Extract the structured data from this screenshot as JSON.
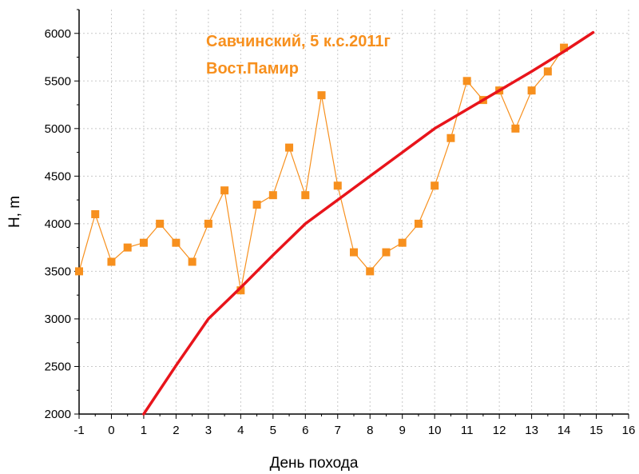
{
  "chart_data": {
    "type": "line",
    "xlabel": "День похода",
    "ylabel": "H, m",
    "xlim": [
      -1,
      16
    ],
    "ylim": [
      2000,
      6250
    ],
    "x_ticks": [
      -1,
      0,
      1,
      2,
      3,
      4,
      5,
      6,
      7,
      8,
      9,
      10,
      11,
      12,
      13,
      14,
      15,
      16
    ],
    "y_ticks": [
      2000,
      2500,
      3000,
      3500,
      4000,
      4500,
      5000,
      5500,
      6000
    ],
    "grid": true,
    "annotations": [
      {
        "text": "Савчинский, 5 к.с.2011г",
        "color": "#f7901e"
      },
      {
        "text": "Вост.Памир",
        "color": "#f7901e"
      }
    ],
    "series": [
      {
        "kind": "markers-line",
        "color": "#f7901e",
        "x": [
          -1,
          -0.5,
          0,
          0.5,
          1,
          1.5,
          2,
          2.5,
          3,
          3.5,
          4,
          4.5,
          5,
          5.5,
          6,
          6.5,
          7,
          7.5,
          8,
          8.5,
          9,
          9.5,
          10,
          10.5,
          11,
          11.5,
          12,
          12.5,
          13,
          13.5,
          14
        ],
        "y": [
          3500,
          4100,
          3600,
          3750,
          3800,
          4000,
          3800,
          3600,
          4000,
          4350,
          3300,
          4200,
          4300,
          4800,
          4300,
          5350,
          4400,
          3700,
          3500,
          3700,
          3800,
          4000,
          4400,
          4900,
          5500,
          5300,
          5400,
          5000,
          5400,
          5600,
          5850
        ]
      },
      {
        "kind": "curve",
        "color": "#e8141b",
        "x": [
          1,
          2,
          3,
          4,
          5,
          6,
          7,
          8,
          9,
          10,
          11,
          12,
          13,
          14,
          14.9
        ],
        "y": [
          2000,
          2510,
          3000,
          3330,
          3670,
          4000,
          4250,
          4500,
          4750,
          5000,
          5200,
          5400,
          5600,
          5810,
          6010
        ]
      }
    ]
  }
}
